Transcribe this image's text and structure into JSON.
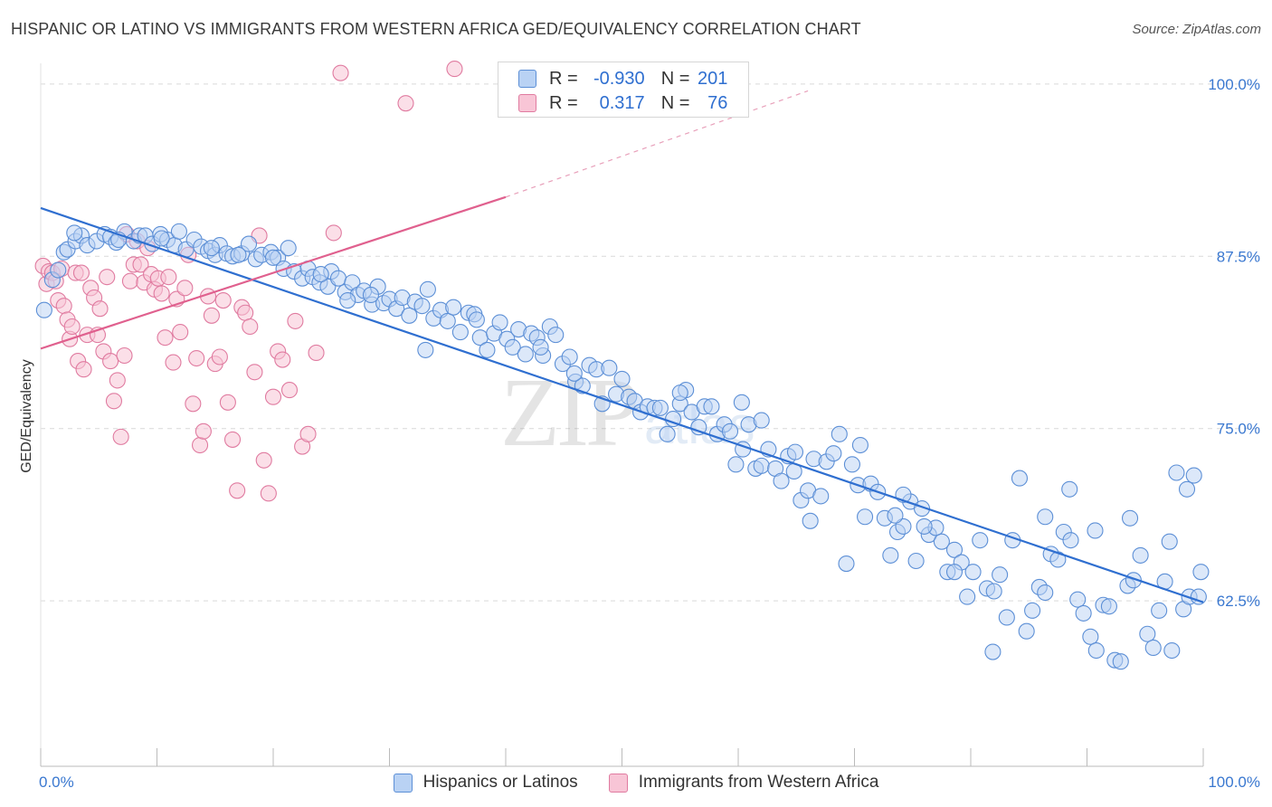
{
  "header": {
    "title": "HISPANIC OR LATINO VS IMMIGRANTS FROM WESTERN AFRICA GED/EQUIVALENCY CORRELATION CHART",
    "source": "Source: ZipAtlas.com"
  },
  "watermark": {
    "zip": "ZIP",
    "atlas": "atlas"
  },
  "legend": {
    "r_label": "R =",
    "n_label": "N =",
    "series": [
      {
        "name": "Hispanics or Latinos",
        "r": "-0.930",
        "n": "201",
        "color": "#5c8fd6",
        "fill": "#b9d2f4"
      },
      {
        "name": "Immigrants from Western Africa",
        "r": "0.317",
        "n": "76",
        "color": "#e07ba0",
        "fill": "#f8c5d6"
      }
    ]
  },
  "chart_data": {
    "type": "scatter",
    "title": "HISPANIC OR LATINO VS IMMIGRANTS FROM WESTERN AFRICA GED/EQUIVALENCY CORRELATION CHART",
    "xlabel": "",
    "ylabel": "GED/Equivalency",
    "xlim": [
      0,
      100
    ],
    "ylim": [
      50.5,
      101.5
    ],
    "x_tick_labels": [
      {
        "value": 0,
        "label": "0.0%"
      },
      {
        "value": 100,
        "label": "100.0%"
      }
    ],
    "y_ticks": [
      {
        "value": 62.5,
        "label": "62.5%"
      },
      {
        "value": 75.0,
        "label": "75.0%"
      },
      {
        "value": 87.5,
        "label": "87.5%"
      },
      {
        "value": 100.0,
        "label": "100.0%"
      }
    ],
    "x_minor_ticks": [
      0,
      10,
      20,
      30,
      40,
      50,
      60,
      70,
      80,
      90,
      100
    ],
    "grid": true,
    "legend_position": "top-center",
    "series": [
      {
        "name": "Hispanics or Latinos",
        "r": -0.93,
        "n": 201,
        "trend": {
          "x0": 0,
          "y0": 91.0,
          "x1": 100,
          "y1": 62.4
        },
        "points": [
          [
            0.3,
            83.6
          ],
          [
            1.0,
            85.8
          ],
          [
            1.5,
            86.5
          ],
          [
            2.0,
            87.8
          ],
          [
            2.3,
            88.0
          ],
          [
            3.0,
            88.6
          ],
          [
            3.5,
            89.0
          ],
          [
            4.0,
            88.3
          ],
          [
            4.8,
            88.6
          ],
          [
            5.5,
            89.1
          ],
          [
            6.0,
            88.9
          ],
          [
            6.5,
            88.5
          ],
          [
            7.2,
            89.3
          ],
          [
            8.0,
            88.6
          ],
          [
            8.5,
            89.0
          ],
          [
            9.0,
            89.0
          ],
          [
            9.6,
            88.4
          ],
          [
            10.3,
            89.1
          ],
          [
            10.9,
            88.7
          ],
          [
            11.5,
            88.3
          ],
          [
            11.9,
            89.3
          ],
          [
            12.5,
            88.0
          ],
          [
            13.2,
            88.7
          ],
          [
            13.8,
            88.2
          ],
          [
            14.4,
            87.9
          ],
          [
            15.0,
            87.6
          ],
          [
            15.4,
            88.3
          ],
          [
            16.0,
            87.7
          ],
          [
            16.5,
            87.5
          ],
          [
            17.3,
            87.7
          ],
          [
            17.9,
            88.4
          ],
          [
            18.5,
            87.3
          ],
          [
            19.0,
            87.6
          ],
          [
            19.8,
            87.8
          ],
          [
            20.4,
            87.4
          ],
          [
            20.9,
            86.6
          ],
          [
            21.3,
            88.1
          ],
          [
            21.8,
            86.4
          ],
          [
            22.5,
            85.9
          ],
          [
            23.0,
            86.6
          ],
          [
            23.4,
            86.0
          ],
          [
            24.0,
            85.6
          ],
          [
            24.7,
            85.3
          ],
          [
            25.0,
            86.4
          ],
          [
            25.6,
            85.9
          ],
          [
            26.2,
            84.9
          ],
          [
            26.8,
            85.6
          ],
          [
            27.3,
            84.7
          ],
          [
            27.8,
            85.0
          ],
          [
            28.5,
            84.0
          ],
          [
            29.0,
            85.3
          ],
          [
            29.5,
            84.1
          ],
          [
            30.0,
            84.4
          ],
          [
            30.6,
            83.7
          ],
          [
            31.1,
            84.5
          ],
          [
            31.7,
            83.2
          ],
          [
            32.2,
            84.2
          ],
          [
            32.8,
            83.9
          ],
          [
            33.3,
            85.1
          ],
          [
            33.8,
            83.0
          ],
          [
            34.4,
            83.6
          ],
          [
            35.0,
            82.8
          ],
          [
            35.5,
            83.8
          ],
          [
            36.1,
            82.0
          ],
          [
            36.8,
            83.4
          ],
          [
            37.3,
            83.3
          ],
          [
            37.8,
            81.6
          ],
          [
            38.4,
            80.7
          ],
          [
            39.0,
            81.9
          ],
          [
            39.5,
            82.7
          ],
          [
            40.1,
            81.5
          ],
          [
            40.6,
            80.9
          ],
          [
            41.1,
            82.2
          ],
          [
            41.7,
            80.4
          ],
          [
            42.2,
            81.9
          ],
          [
            42.7,
            81.6
          ],
          [
            43.2,
            80.3
          ],
          [
            43.8,
            82.4
          ],
          [
            44.3,
            81.8
          ],
          [
            44.9,
            79.7
          ],
          [
            45.5,
            80.2
          ],
          [
            46.0,
            78.4
          ],
          [
            46.6,
            78.1
          ],
          [
            47.2,
            79.6
          ],
          [
            47.8,
            79.3
          ],
          [
            48.3,
            76.8
          ],
          [
            48.9,
            79.4
          ],
          [
            49.5,
            77.5
          ],
          [
            50.0,
            78.6
          ],
          [
            50.6,
            77.3
          ],
          [
            51.1,
            77.0
          ],
          [
            51.6,
            76.2
          ],
          [
            52.2,
            76.6
          ],
          [
            52.8,
            76.5
          ],
          [
            53.3,
            76.5
          ],
          [
            53.9,
            74.6
          ],
          [
            54.4,
            75.7
          ],
          [
            55.0,
            76.8
          ],
          [
            55.5,
            77.8
          ],
          [
            56.0,
            76.2
          ],
          [
            56.6,
            75.1
          ],
          [
            57.1,
            76.6
          ],
          [
            57.7,
            76.6
          ],
          [
            58.2,
            74.6
          ],
          [
            58.8,
            75.3
          ],
          [
            59.3,
            74.8
          ],
          [
            59.8,
            72.4
          ],
          [
            60.4,
            73.5
          ],
          [
            60.9,
            75.3
          ],
          [
            61.5,
            72.1
          ],
          [
            62.0,
            72.3
          ],
          [
            62.6,
            73.5
          ],
          [
            63.2,
            72.1
          ],
          [
            63.7,
            71.2
          ],
          [
            64.3,
            73.0
          ],
          [
            64.8,
            71.9
          ],
          [
            65.4,
            69.8
          ],
          [
            66.0,
            70.5
          ],
          [
            66.5,
            72.8
          ],
          [
            67.1,
            70.1
          ],
          [
            67.6,
            72.6
          ],
          [
            68.2,
            73.2
          ],
          [
            68.7,
            74.6
          ],
          [
            69.3,
            65.2
          ],
          [
            69.8,
            72.4
          ],
          [
            70.3,
            70.9
          ],
          [
            70.9,
            68.6
          ],
          [
            71.4,
            71.0
          ],
          [
            72.0,
            70.4
          ],
          [
            72.6,
            68.5
          ],
          [
            73.1,
            65.8
          ],
          [
            73.7,
            67.5
          ],
          [
            74.2,
            67.9
          ],
          [
            74.8,
            69.7
          ],
          [
            75.3,
            65.4
          ],
          [
            75.8,
            69.2
          ],
          [
            76.4,
            67.3
          ],
          [
            77.0,
            67.8
          ],
          [
            77.5,
            66.8
          ],
          [
            78.0,
            64.6
          ],
          [
            78.6,
            66.2
          ],
          [
            79.2,
            65.3
          ],
          [
            79.7,
            62.8
          ],
          [
            80.2,
            64.6
          ],
          [
            80.8,
            66.9
          ],
          [
            81.4,
            63.4
          ],
          [
            81.9,
            58.8
          ],
          [
            82.5,
            64.4
          ],
          [
            83.1,
            61.3
          ],
          [
            83.6,
            66.9
          ],
          [
            84.2,
            71.4
          ],
          [
            84.8,
            60.3
          ],
          [
            85.3,
            61.8
          ],
          [
            85.9,
            63.5
          ],
          [
            86.4,
            68.6
          ],
          [
            86.9,
            65.9
          ],
          [
            87.5,
            65.5
          ],
          [
            88.0,
            67.5
          ],
          [
            88.6,
            66.9
          ],
          [
            89.2,
            62.6
          ],
          [
            89.7,
            61.6
          ],
          [
            90.3,
            59.9
          ],
          [
            90.8,
            58.9
          ],
          [
            91.4,
            62.2
          ],
          [
            91.9,
            62.1
          ],
          [
            92.4,
            58.2
          ],
          [
            92.9,
            58.1
          ],
          [
            93.5,
            63.6
          ],
          [
            94.0,
            64.0
          ],
          [
            94.6,
            65.8
          ],
          [
            95.2,
            60.1
          ],
          [
            95.7,
            59.1
          ],
          [
            96.2,
            61.8
          ],
          [
            96.7,
            63.9
          ],
          [
            97.3,
            58.9
          ],
          [
            97.7,
            71.8
          ],
          [
            98.3,
            61.9
          ],
          [
            98.8,
            62.8
          ],
          [
            99.2,
            71.6
          ],
          [
            99.6,
            62.8
          ],
          [
            99.8,
            64.6
          ],
          [
            98.6,
            70.6
          ],
          [
            97.1,
            66.8
          ],
          [
            93.7,
            68.5
          ],
          [
            90.7,
            67.6
          ],
          [
            88.5,
            70.6
          ],
          [
            86.4,
            63.1
          ],
          [
            82.0,
            63.2
          ],
          [
            78.6,
            64.6
          ],
          [
            76.0,
            67.9
          ],
          [
            73.5,
            68.7
          ],
          [
            74.2,
            70.2
          ],
          [
            66.2,
            68.3
          ],
          [
            70.5,
            73.8
          ],
          [
            62.0,
            75.6
          ],
          [
            64.9,
            73.3
          ],
          [
            55.0,
            77.6
          ],
          [
            60.3,
            76.9
          ],
          [
            45.9,
            79.0
          ],
          [
            43.0,
            80.9
          ],
          [
            37.5,
            82.9
          ],
          [
            33.1,
            80.7
          ],
          [
            28.4,
            84.7
          ],
          [
            26.4,
            84.3
          ],
          [
            24.1,
            86.2
          ],
          [
            20.0,
            87.4
          ],
          [
            17.0,
            87.6
          ],
          [
            14.7,
            88.1
          ],
          [
            10.4,
            88.8
          ],
          [
            6.7,
            88.7
          ],
          [
            2.9,
            89.2
          ]
        ]
      },
      {
        "name": "Immigrants from Western Africa",
        "r": 0.317,
        "n": 76,
        "trend": {
          "x0": 0,
          "y0": 80.8,
          "x1": 40,
          "y1": 91.8,
          "dash_to_x": 66,
          "dash_to_y": 99.5
        },
        "points": [
          [
            0.2,
            86.8
          ],
          [
            0.5,
            85.5
          ],
          [
            0.7,
            86.4
          ],
          [
            1.0,
            86.3
          ],
          [
            1.3,
            85.7
          ],
          [
            1.5,
            84.3
          ],
          [
            1.8,
            86.6
          ],
          [
            2.0,
            83.9
          ],
          [
            2.3,
            82.9
          ],
          [
            2.5,
            81.5
          ],
          [
            2.7,
            82.4
          ],
          [
            3.0,
            86.3
          ],
          [
            3.2,
            79.9
          ],
          [
            3.5,
            86.3
          ],
          [
            3.7,
            79.3
          ],
          [
            4.0,
            81.8
          ],
          [
            4.3,
            85.2
          ],
          [
            4.6,
            84.5
          ],
          [
            4.9,
            81.8
          ],
          [
            5.1,
            83.7
          ],
          [
            5.4,
            80.6
          ],
          [
            5.7,
            86.0
          ],
          [
            6.0,
            79.9
          ],
          [
            6.3,
            77.0
          ],
          [
            6.6,
            78.5
          ],
          [
            6.9,
            74.4
          ],
          [
            7.2,
            80.3
          ],
          [
            7.4,
            89.1
          ],
          [
            7.7,
            85.7
          ],
          [
            8.0,
            86.9
          ],
          [
            8.3,
            88.6
          ],
          [
            8.6,
            86.9
          ],
          [
            8.9,
            85.6
          ],
          [
            9.2,
            88.1
          ],
          [
            9.5,
            86.2
          ],
          [
            9.8,
            85.1
          ],
          [
            10.1,
            85.9
          ],
          [
            10.4,
            84.8
          ],
          [
            10.7,
            81.6
          ],
          [
            11.0,
            86.0
          ],
          [
            11.4,
            79.8
          ],
          [
            11.7,
            84.4
          ],
          [
            12.0,
            82.0
          ],
          [
            12.4,
            85.2
          ],
          [
            12.7,
            87.6
          ],
          [
            13.1,
            76.8
          ],
          [
            13.4,
            80.1
          ],
          [
            13.7,
            73.8
          ],
          [
            14.0,
            74.8
          ],
          [
            14.4,
            84.6
          ],
          [
            14.7,
            83.2
          ],
          [
            15.0,
            79.7
          ],
          [
            15.4,
            80.2
          ],
          [
            15.7,
            84.3
          ],
          [
            16.1,
            76.9
          ],
          [
            16.5,
            74.2
          ],
          [
            16.9,
            70.5
          ],
          [
            17.3,
            83.8
          ],
          [
            17.6,
            83.4
          ],
          [
            18.0,
            82.4
          ],
          [
            18.4,
            79.1
          ],
          [
            18.8,
            89.0
          ],
          [
            19.2,
            72.7
          ],
          [
            19.6,
            70.3
          ],
          [
            20.0,
            77.3
          ],
          [
            20.4,
            80.6
          ],
          [
            20.8,
            80.0
          ],
          [
            21.4,
            77.8
          ],
          [
            21.9,
            82.8
          ],
          [
            22.5,
            73.7
          ],
          [
            23.0,
            74.6
          ],
          [
            23.7,
            80.5
          ],
          [
            25.8,
            100.8
          ],
          [
            31.4,
            98.6
          ],
          [
            35.6,
            101.1
          ],
          [
            25.2,
            89.2
          ]
        ]
      }
    ]
  }
}
